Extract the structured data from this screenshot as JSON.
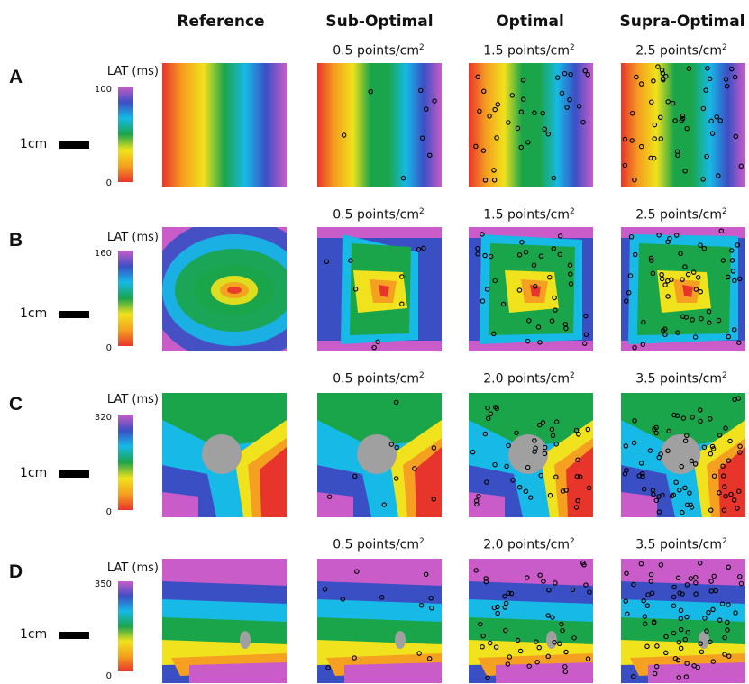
{
  "columns": {
    "reference": "Reference",
    "sub_optimal": "Sub-Optimal",
    "optimal": "Optimal",
    "supra_optimal": "Supra-Optimal"
  },
  "scale_label": "1cm",
  "density_unit": "points/cm",
  "density_unit_power": "2",
  "rows": [
    {
      "letter": "A",
      "colorbar_title": "LAT (ms)",
      "max": "100",
      "min": "0",
      "densities": [
        "0.5",
        "1.5",
        "2.5"
      ]
    },
    {
      "letter": "B",
      "colorbar_title": "LAT (ms)",
      "max": "160",
      "min": "0",
      "densities": [
        "0.5",
        "1.5",
        "2.5"
      ]
    },
    {
      "letter": "C",
      "colorbar_title": "LAT (ms)",
      "max": "320",
      "min": "0",
      "densities": [
        "0.5",
        "2.0",
        "3.5"
      ]
    },
    {
      "letter": "D",
      "colorbar_title": "LAT (ms)",
      "max": "350",
      "min": "0",
      "densities": [
        "0.5",
        "2.0",
        "3.5"
      ]
    }
  ],
  "colormap": [
    "#e8352b",
    "#f5a020",
    "#f0e21c",
    "#1aa54a",
    "#17b9e6",
    "#3b4fc4",
    "#c95cc8"
  ],
  "obstacle_color": "#a0a0a0"
}
